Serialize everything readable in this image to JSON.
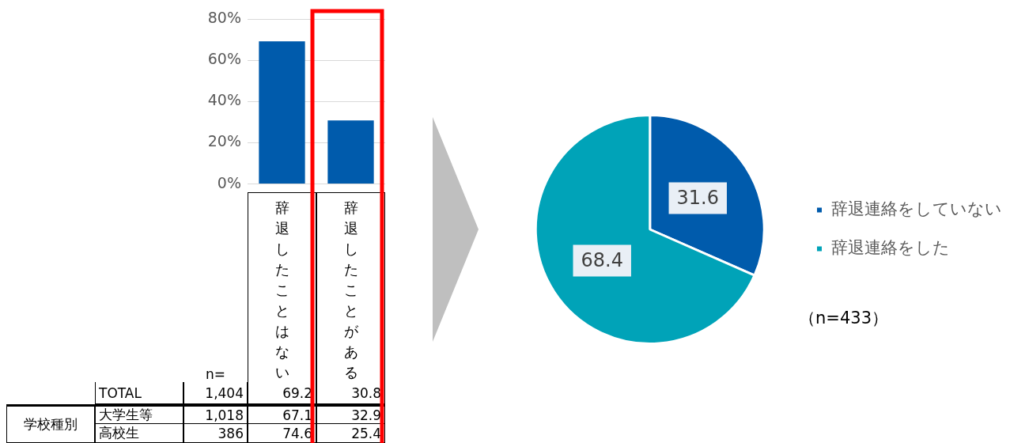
{
  "chart_data": [
    {
      "type": "bar",
      "categories": [
        "辞退したことはない",
        "辞退したことがある"
      ],
      "values": [
        69.2,
        30.8
      ],
      "color": "#005bac",
      "ylim": [
        0,
        80
      ],
      "yticks": [
        {
          "value": 0,
          "label": "0%"
        },
        {
          "value": 20,
          "label": "20%"
        },
        {
          "value": 40,
          "label": "40%"
        },
        {
          "value": 60,
          "label": "60%"
        },
        {
          "value": 80,
          "label": "80%"
        }
      ],
      "grid": "y",
      "tick_labels": "y",
      "data_labels": true,
      "legend": false,
      "annotations": [
        "n=",
        "TOTAL",
        "1,404",
        "学校種別",
        "大学生等",
        "1,018",
        "67.1",
        "32.9",
        "高校生",
        "386",
        "74.6",
        "25.4"
      ]
    },
    {
      "type": "pie",
      "categories": [
        "辞退連絡をしていない",
        "辞退連絡をした"
      ],
      "values": [
        31.6,
        68.4
      ],
      "colors": [
        "#005bac",
        "#00a3b8"
      ],
      "data_labels": true,
      "legend": "right",
      "annotations": [
        "（n=433）"
      ]
    }
  ]
}
